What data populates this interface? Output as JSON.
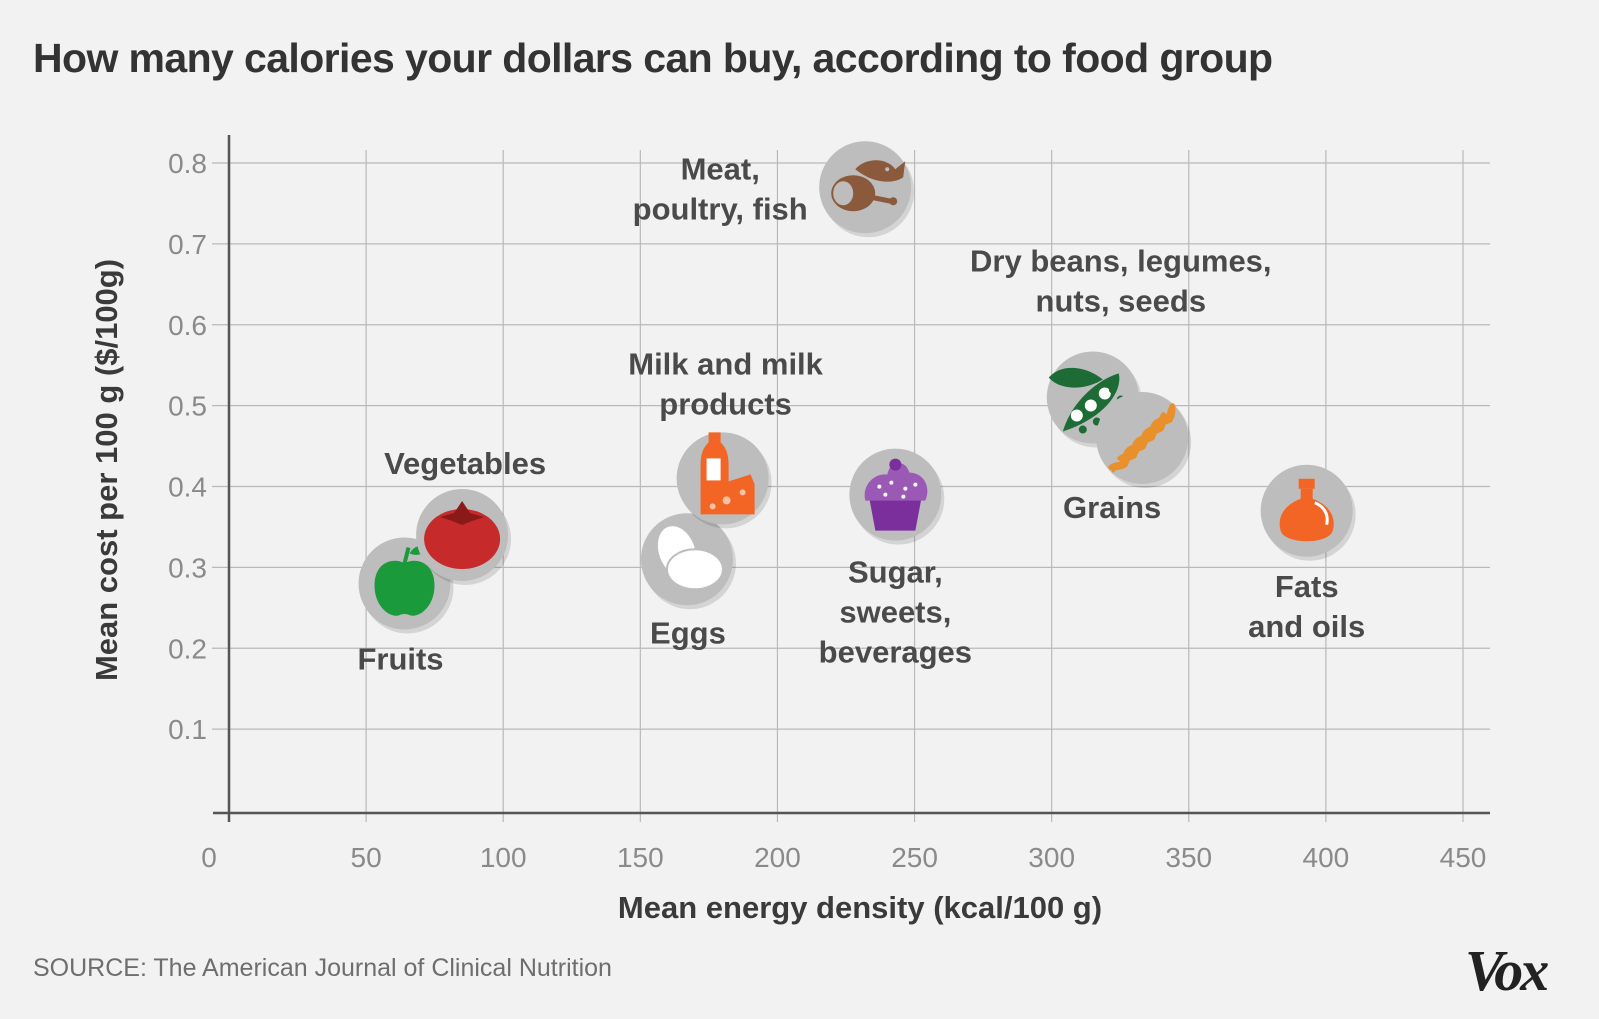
{
  "chart_data": {
    "type": "scatter",
    "title": "How many calories your dollars can buy, according to food group",
    "xlabel": "Mean energy density (kcal/100 g)",
    "ylabel": "Mean cost per 100 g ($/100g)",
    "xlim": [
      0,
      450
    ],
    "ylim": [
      0,
      0.8
    ],
    "xticks": [
      "0",
      "50",
      "100",
      "150",
      "200",
      "250",
      "300",
      "350",
      "400",
      "450"
    ],
    "yticks": [
      "0.1",
      "0.2",
      "0.3",
      "0.4",
      "0.5",
      "0.6",
      "0.7",
      "0.8"
    ],
    "grid": true,
    "points": [
      {
        "id": "fruits",
        "label": [
          "Fruits"
        ],
        "x": 64,
        "y": 0.28,
        "icon": "apple-icon",
        "color": "#1a9a3a",
        "label_pos": "below"
      },
      {
        "id": "vegetables",
        "label": [
          "Vegetables"
        ],
        "x": 85,
        "y": 0.34,
        "icon": "tomato-icon",
        "color": "#c62a2a",
        "label_pos": "above"
      },
      {
        "id": "eggs",
        "label": [
          "Eggs"
        ],
        "x": 167,
        "y": 0.31,
        "icon": "egg-icon",
        "color": "#ffffff",
        "label_pos": "below"
      },
      {
        "id": "milk",
        "label": [
          "Milk and milk",
          "products"
        ],
        "x": 180,
        "y": 0.41,
        "icon": "milk-cheese-icon",
        "color": "#f26524",
        "label_pos": "above"
      },
      {
        "id": "sugar",
        "label": [
          "Sugar,",
          "sweets,",
          "beverages"
        ],
        "x": 243,
        "y": 0.39,
        "icon": "cupcake-icon",
        "color": "#7b2f9c",
        "label_pos": "below"
      },
      {
        "id": "meat",
        "label": [
          "Meat,",
          "poultry, fish"
        ],
        "x": 232,
        "y": 0.77,
        "icon": "meat-fish-icon",
        "color": "#8b5a3c",
        "label_pos": "left"
      },
      {
        "id": "beans",
        "label": [
          "Dry beans, legumes,",
          "nuts, seeds"
        ],
        "x": 315,
        "y": 0.51,
        "icon": "peapod-icon",
        "color": "#1d6b35",
        "label_pos": "above"
      },
      {
        "id": "grains",
        "label": [
          "Grains"
        ],
        "x": 333,
        "y": 0.46,
        "icon": "wheat-icon",
        "color": "#e8912c",
        "label_pos": "below"
      },
      {
        "id": "fats",
        "label": [
          "Fats",
          "and oils"
        ],
        "x": 393,
        "y": 0.37,
        "icon": "oil-bottle-icon",
        "color": "#f26524",
        "label_pos": "below"
      }
    ]
  },
  "source": "SOURCE: The American Journal of Clinical Nutrition",
  "logo": "Vox",
  "colors": {
    "background": "#f2f2f2",
    "circle": "#bdbdbd",
    "grid": "#b9b9b9"
  }
}
